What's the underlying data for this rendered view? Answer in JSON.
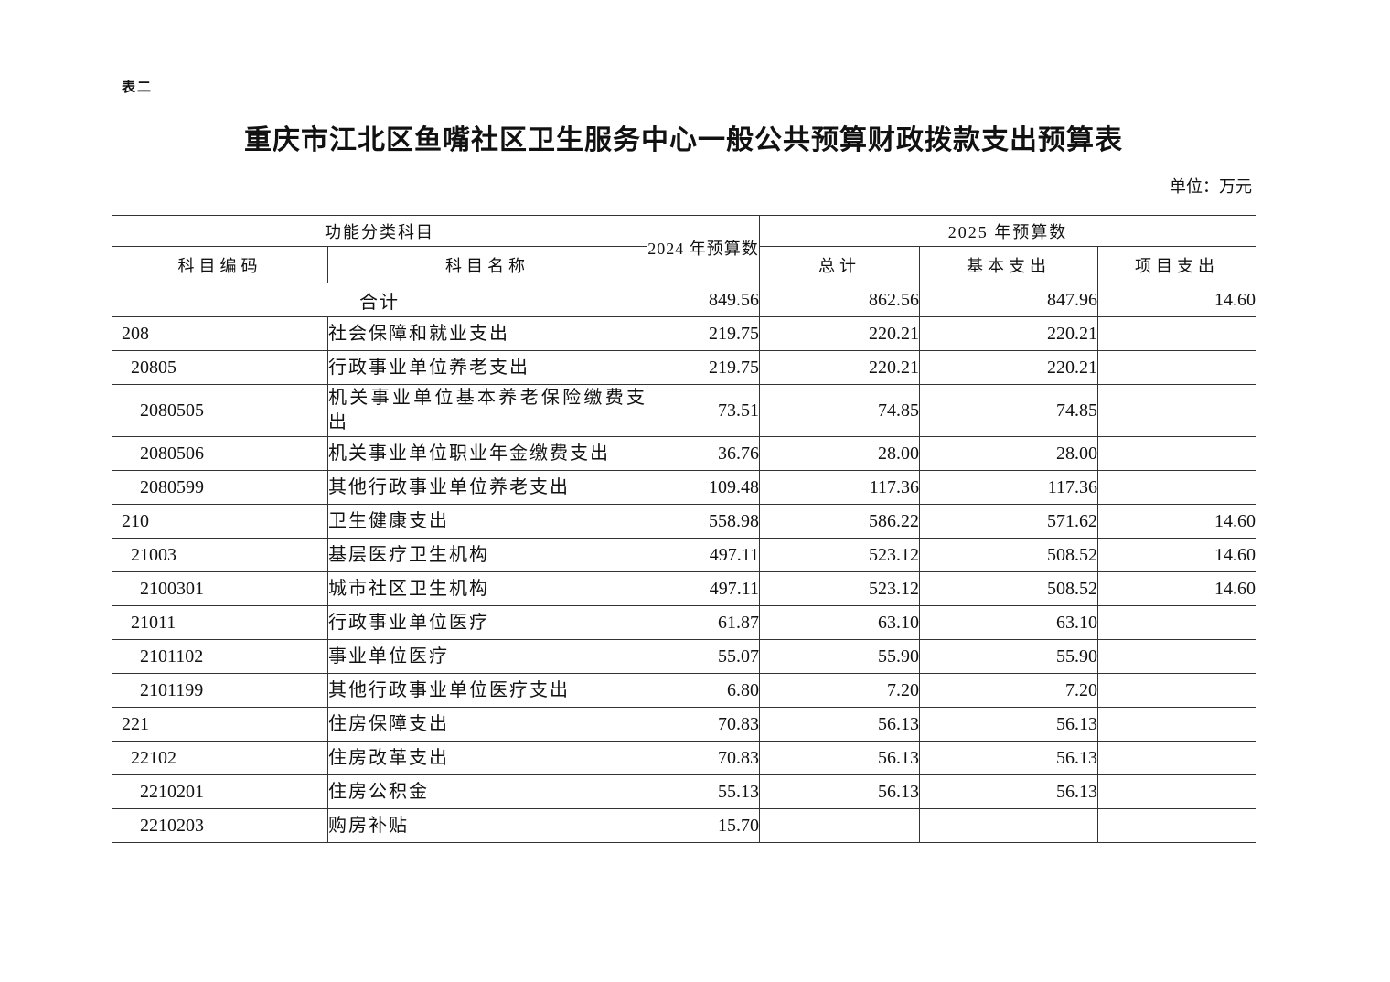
{
  "page": {
    "tag": "表二",
    "title": "重庆市江北区鱼嘴社区卫生服务中心一般公共预算财政拨款支出预算表",
    "unit_label": "单位：万元"
  },
  "table": {
    "header": {
      "func_group": "功能分类科目",
      "col_code": "科目编码",
      "col_name": "科目名称",
      "col_2024": "2024 年预算数",
      "group_2025": "2025 年预算数",
      "col_total": "总计",
      "col_basic": "基本支出",
      "col_project": "项目支出"
    },
    "total_row": {
      "label": "合计",
      "y2024": "849.56",
      "total": "862.56",
      "basic": "847.96",
      "project": "14.60"
    },
    "rows": [
      {
        "code": "208",
        "level": 1,
        "name": "社会保障和就业支出",
        "y2024": "219.75",
        "total": "220.21",
        "basic": "220.21",
        "project": ""
      },
      {
        "code": "20805",
        "level": 2,
        "name": "行政事业单位养老支出",
        "y2024": "219.75",
        "total": "220.21",
        "basic": "220.21",
        "project": ""
      },
      {
        "code": "2080505",
        "level": 3,
        "name": "机关事业单位基本养老保险缴费支出",
        "y2024": "73.51",
        "total": "74.85",
        "basic": "74.85",
        "project": ""
      },
      {
        "code": "2080506",
        "level": 3,
        "name": "机关事业单位职业年金缴费支出",
        "y2024": "36.76",
        "total": "28.00",
        "basic": "28.00",
        "project": ""
      },
      {
        "code": "2080599",
        "level": 3,
        "name": "其他行政事业单位养老支出",
        "y2024": "109.48",
        "total": "117.36",
        "basic": "117.36",
        "project": ""
      },
      {
        "code": "210",
        "level": 1,
        "name": "卫生健康支出",
        "y2024": "558.98",
        "total": "586.22",
        "basic": "571.62",
        "project": "14.60"
      },
      {
        "code": "21003",
        "level": 2,
        "name": "基层医疗卫生机构",
        "y2024": "497.11",
        "total": "523.12",
        "basic": "508.52",
        "project": "14.60"
      },
      {
        "code": "2100301",
        "level": 3,
        "name": "城市社区卫生机构",
        "y2024": "497.11",
        "total": "523.12",
        "basic": "508.52",
        "project": "14.60"
      },
      {
        "code": "21011",
        "level": 2,
        "name": "行政事业单位医疗",
        "y2024": "61.87",
        "total": "63.10",
        "basic": "63.10",
        "project": ""
      },
      {
        "code": "2101102",
        "level": 3,
        "name": "事业单位医疗",
        "y2024": "55.07",
        "total": "55.90",
        "basic": "55.90",
        "project": ""
      },
      {
        "code": "2101199",
        "level": 3,
        "name": "其他行政事业单位医疗支出",
        "y2024": "6.80",
        "total": "7.20",
        "basic": "7.20",
        "project": ""
      },
      {
        "code": "221",
        "level": 1,
        "name": "住房保障支出",
        "y2024": "70.83",
        "total": "56.13",
        "basic": "56.13",
        "project": ""
      },
      {
        "code": "22102",
        "level": 2,
        "name": "住房改革支出",
        "y2024": "70.83",
        "total": "56.13",
        "basic": "56.13",
        "project": ""
      },
      {
        "code": "2210201",
        "level": 3,
        "name": "住房公积金",
        "y2024": "55.13",
        "total": "56.13",
        "basic": "56.13",
        "project": ""
      },
      {
        "code": "2210203",
        "level": 3,
        "name": "购房补贴",
        "y2024": "15.70",
        "total": "",
        "basic": "",
        "project": ""
      }
    ]
  }
}
